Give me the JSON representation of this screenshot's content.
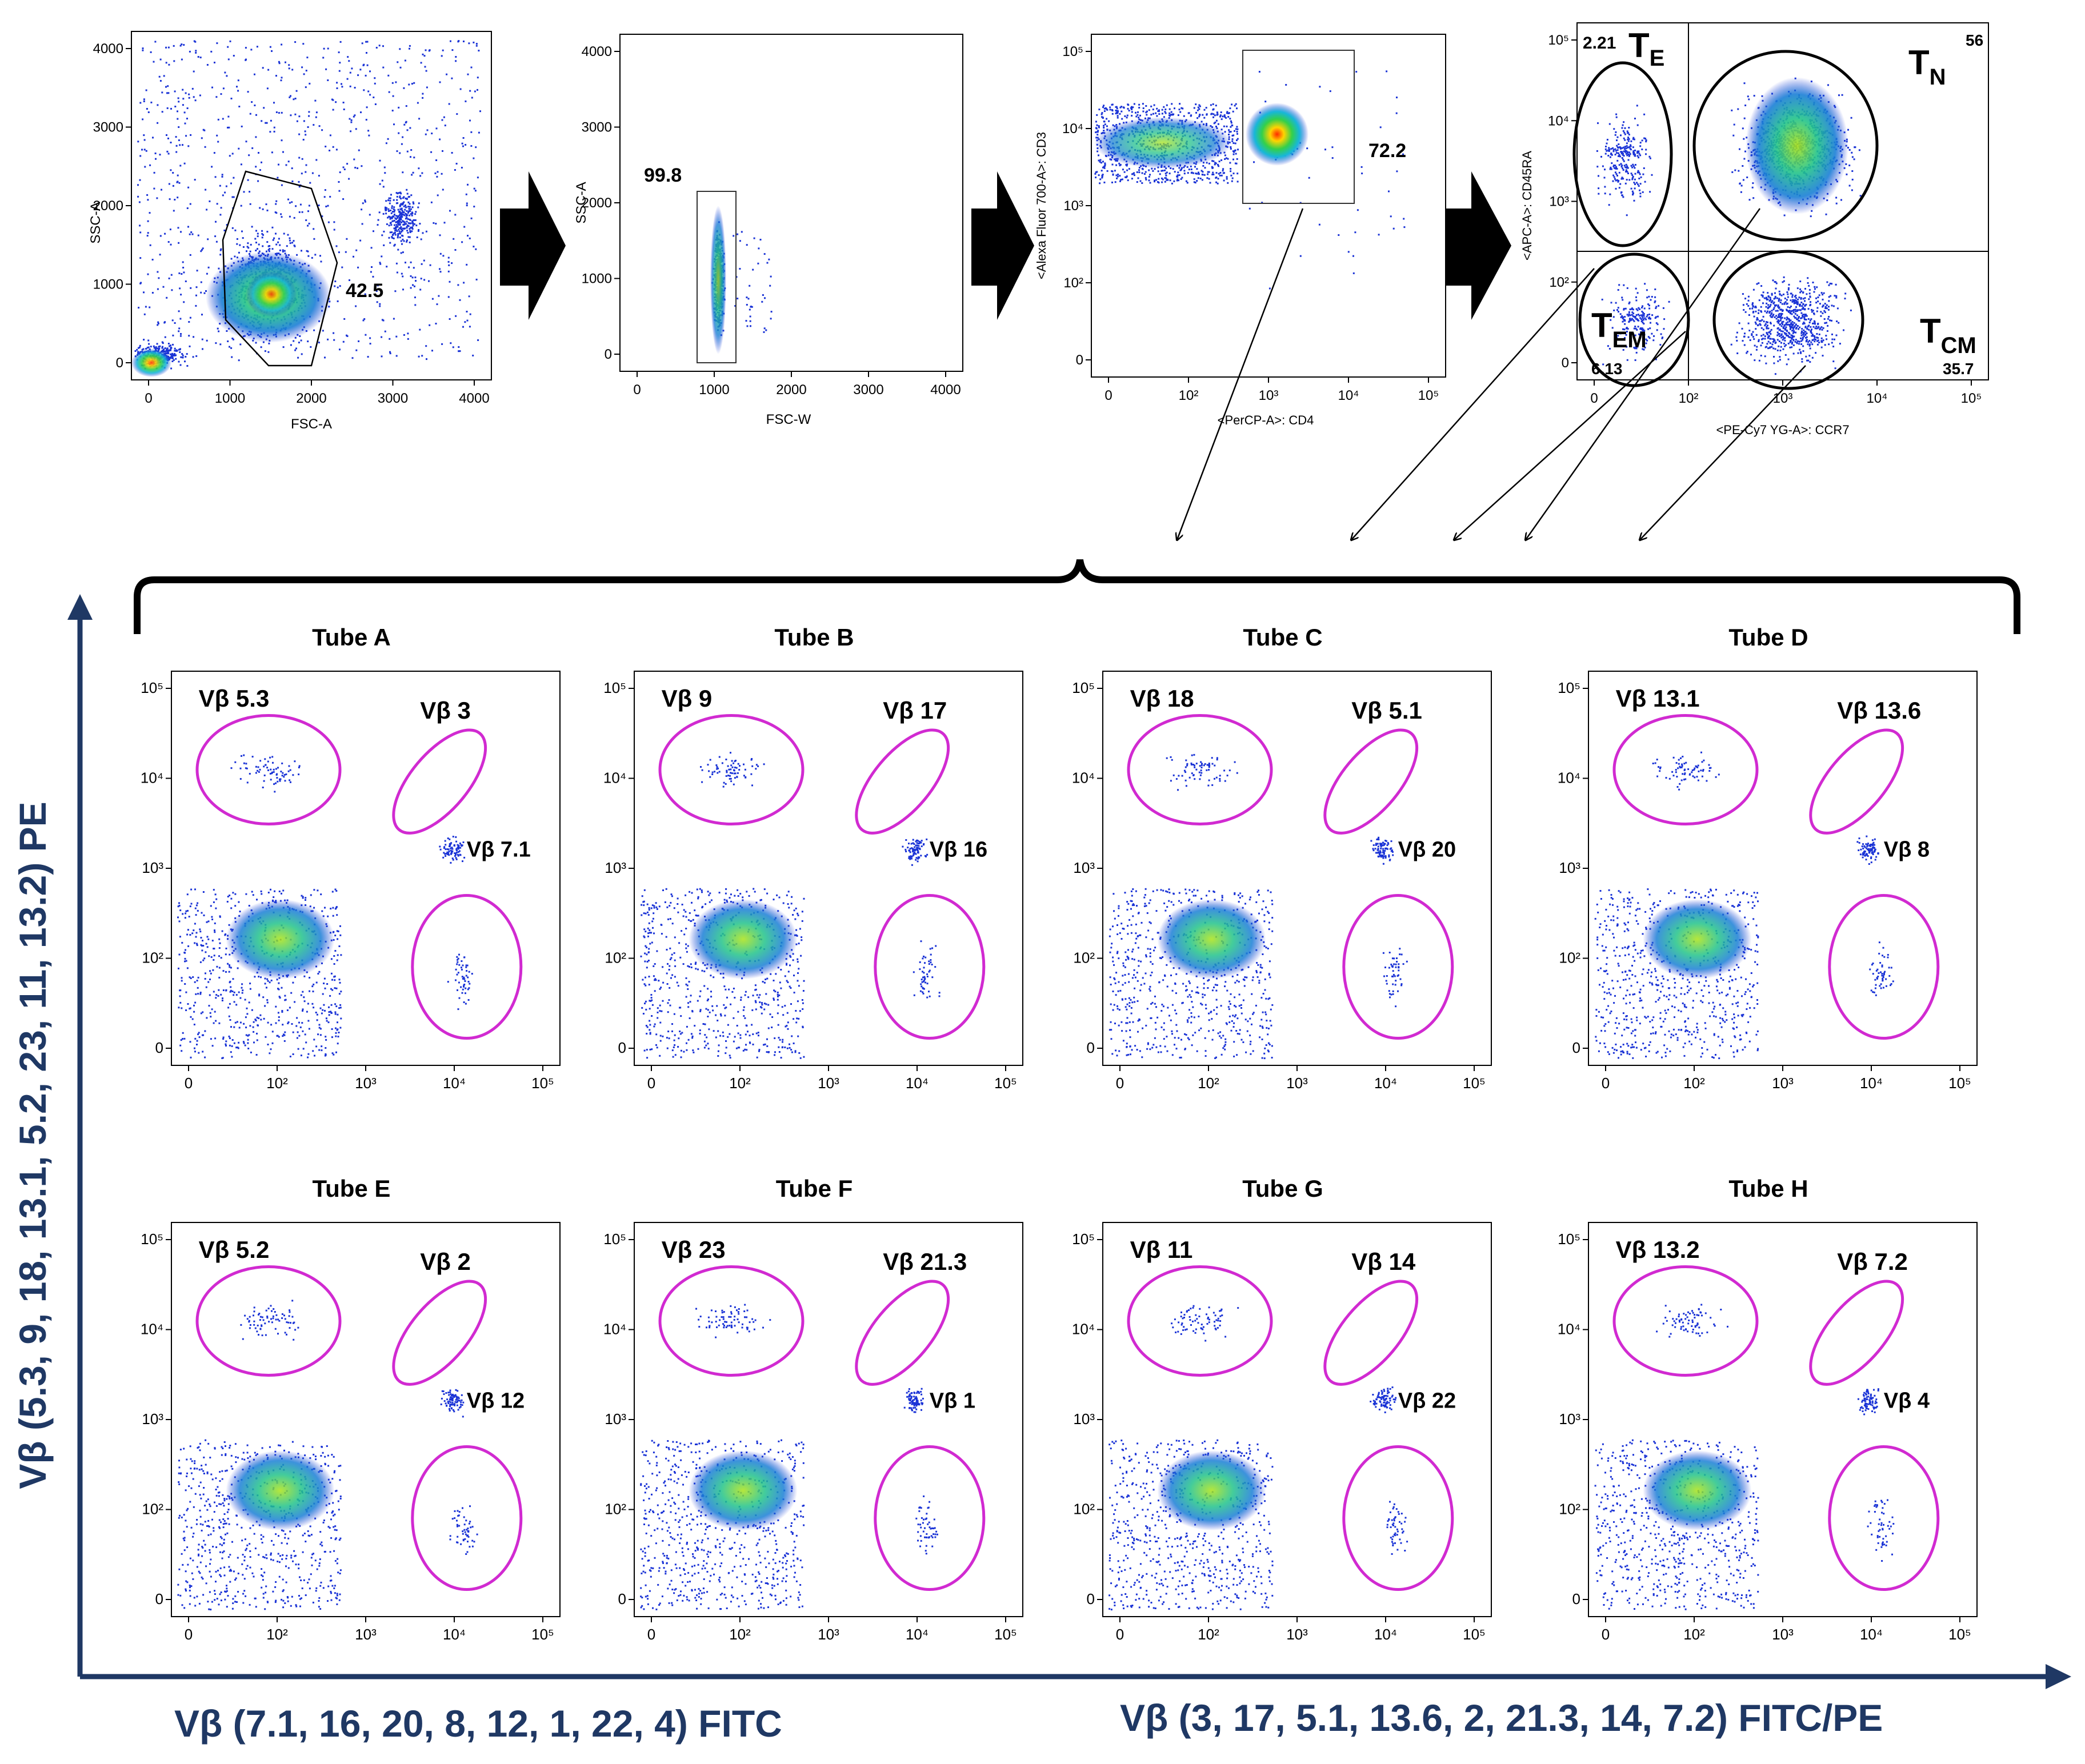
{
  "colors": {
    "navy": "#1f3864",
    "gate_magenta": "#d12ad1",
    "dot_blue": "#1a33d6",
    "axis": "#000000"
  },
  "top_panels": [
    {
      "id": "p1",
      "y_label": "SSC-A",
      "x_label": "FSC-A",
      "gate_value": "42.5",
      "x_ticks": [
        "0",
        "1000",
        "2000",
        "3000",
        "4000"
      ],
      "y_ticks": [
        "4000",
        "3000",
        "2000",
        "1000",
        "0"
      ]
    },
    {
      "id": "p2",
      "y_label": "SSC-A",
      "x_label": "FSC-W",
      "gate_value": "99.8",
      "x_ticks": [
        "0",
        "1000",
        "2000",
        "3000",
        "4000"
      ],
      "y_ticks": [
        "4000",
        "3000",
        "2000",
        "1000",
        "0"
      ]
    },
    {
      "id": "p3",
      "y_label": "<Alexa Fluor 700-A>: CD3",
      "x_label": "<PerCP-A>: CD4",
      "gate_value": "72.2",
      "x_ticks": [
        "0",
        "10²",
        "10³",
        "10⁴",
        "10⁵"
      ],
      "y_ticks": [
        "10⁵",
        "10⁴",
        "10³",
        "10²",
        "0"
      ]
    },
    {
      "id": "p4",
      "y_label": "<APC-A>: CD45RA",
      "x_label": "<PE-Cy7 YG-A>: CCR7",
      "x_ticks": [
        "0",
        "10²",
        "10³",
        "10⁴",
        "10⁵"
      ],
      "y_ticks": [
        "10⁵",
        "10⁴",
        "10³",
        "10²",
        "0"
      ],
      "quadrants": {
        "te_value": "2.21",
        "te_label": "T",
        "te_sub": "E",
        "tn_value": "56",
        "tn_label": "T",
        "tn_sub": "N",
        "tem_value": "6.13",
        "tem_label": "T",
        "tem_sub": "EM",
        "tcm_value": "35.7",
        "tcm_label": "T",
        "tcm_sub": "CM"
      }
    }
  ],
  "log_ticks": {
    "x": [
      "0",
      "10²",
      "10³",
      "10⁴",
      "10⁵"
    ],
    "y": [
      "10⁵",
      "10⁴",
      "10³",
      "10²",
      "0"
    ]
  },
  "tubes": [
    {
      "name": "Tube A",
      "g1": "Vβ 5.3",
      "g2": "Vβ 3",
      "g3": "Vβ 7.1"
    },
    {
      "name": "Tube B",
      "g1": "Vβ 9",
      "g2": "Vβ 17",
      "g3": "Vβ 16"
    },
    {
      "name": "Tube C",
      "g1": "Vβ 18",
      "g2": "Vβ 5.1",
      "g3": "Vβ 20"
    },
    {
      "name": "Tube D",
      "g1": "Vβ 13.1",
      "g2": "Vβ 13.6",
      "g3": "Vβ 8"
    },
    {
      "name": "Tube E",
      "g1": "Vβ 5.2",
      "g2": "Vβ 2",
      "g3": "Vβ 12"
    },
    {
      "name": "Tube F",
      "g1": "Vβ 23",
      "g2": "Vβ 21.3",
      "g3": "Vβ 1"
    },
    {
      "name": "Tube G",
      "g1": "Vβ 11",
      "g2": "Vβ 14",
      "g3": "Vβ 22"
    },
    {
      "name": "Tube H",
      "g1": "Vβ 13.2",
      "g2": "Vβ 7.2",
      "g3": "Vβ 4"
    }
  ],
  "axis_titles": {
    "y": "Vβ (5.3, 9, 18, 13.1, 5.2, 23, 11, 13.2)  PE",
    "x_left": "Vβ (7.1, 16, 20, 8, 12, 1, 22, 4) FITC",
    "x_right": "Vβ (3, 17, 5.1, 13.6, 2, 21.3, 14, 7.2) FITC/PE"
  }
}
